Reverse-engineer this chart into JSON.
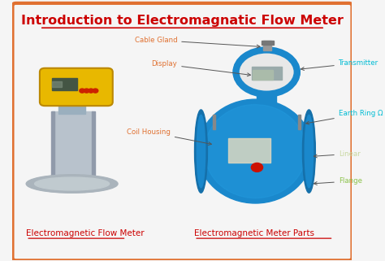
{
  "title": "Introduction to Electromagnatic Flow Meter",
  "title_color": "#cc0000",
  "title_fontsize": 11.5,
  "bg_color": "#f5f5f5",
  "border_color": "#e07030",
  "border_linewidth": 3,
  "left_caption": "Electromagnetic Flow Meter",
  "right_caption": "Electromagnetic Meter Parts",
  "caption_color": "#cc0000",
  "caption_fontsize": 7.5,
  "label_color_orange": "#e07030",
  "label_color_cyan": "#00bcd4",
  "label_color_lightgreen": "#c8d8a0",
  "label_color_green": "#8bc34a"
}
